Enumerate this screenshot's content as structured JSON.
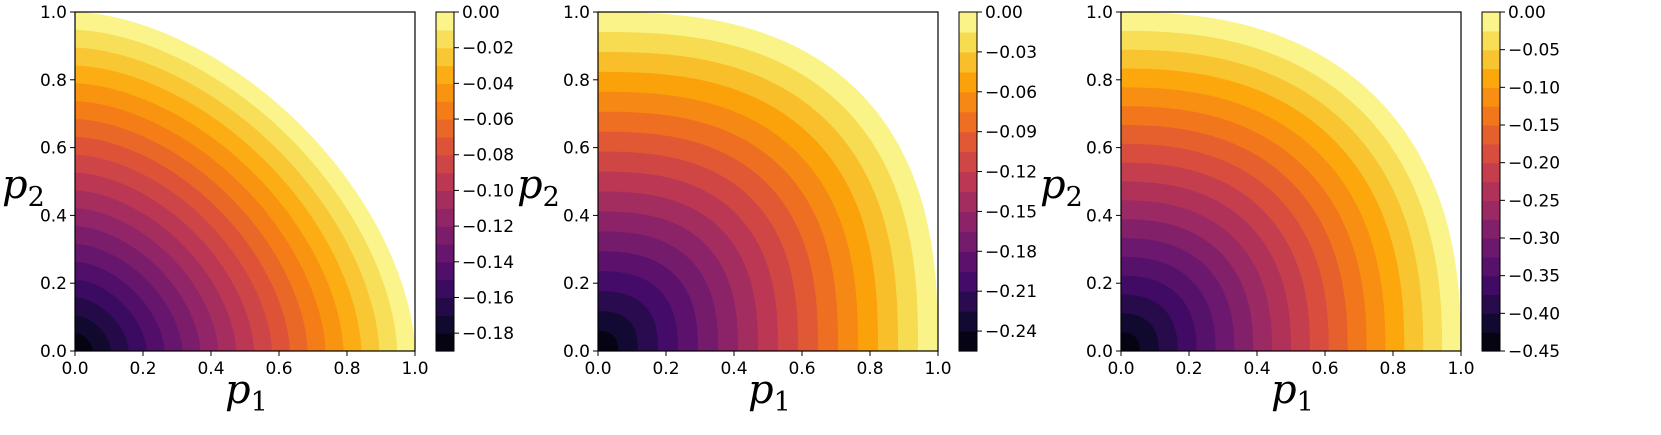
{
  "chart_data": [
    {
      "type": "heatmap",
      "subtype": "filled-contour",
      "colormap": "inferno",
      "xlabel": "p",
      "xlabel_sub": "1",
      "ylabel": "p",
      "ylabel_sub": "2",
      "xlim": [
        0.0,
        1.0
      ],
      "ylim": [
        0.0,
        1.0
      ],
      "xticks": [
        "0.0",
        "0.2",
        "0.4",
        "0.6",
        "0.8",
        "1.0"
      ],
      "yticks": [
        "0.0",
        "0.2",
        "0.4",
        "0.6",
        "0.8",
        "1.0"
      ],
      "min_value": -0.19,
      "max_value": 0.0,
      "contour_norm": 1.7,
      "num_levels": 19,
      "colorbar": {
        "min": -0.19,
        "max": 0.0,
        "tick_values": [
          0.0,
          -0.02,
          -0.04,
          -0.06,
          -0.08,
          -0.1,
          -0.12,
          -0.14,
          -0.16,
          -0.18
        ],
        "tick_labels": [
          "0.00",
          "−0.02",
          "−0.04",
          "−0.06",
          "−0.08",
          "−0.10",
          "−0.12",
          "−0.14",
          "−0.16",
          "−0.18"
        ]
      },
      "grid": false
    },
    {
      "type": "heatmap",
      "subtype": "filled-contour",
      "colormap": "inferno",
      "xlabel": "p",
      "xlabel_sub": "1",
      "ylabel": "p",
      "ylabel_sub": "2",
      "xlim": [
        0.0,
        1.0
      ],
      "ylim": [
        0.0,
        1.0
      ],
      "xticks": [
        "0.0",
        "0.2",
        "0.4",
        "0.6",
        "0.8",
        "1.0"
      ],
      "yticks": [
        "0.0",
        "0.2",
        "0.4",
        "0.6",
        "0.8",
        "1.0"
      ],
      "min_value": -0.255,
      "max_value": 0.0,
      "contour_norm": 2.6,
      "num_levels": 17,
      "colorbar": {
        "min": -0.255,
        "max": 0.0,
        "tick_values": [
          0.0,
          -0.03,
          -0.06,
          -0.09,
          -0.12,
          -0.15,
          -0.18,
          -0.21,
          -0.24
        ],
        "tick_labels": [
          "0.00",
          "−0.03",
          "−0.06",
          "−0.09",
          "−0.12",
          "−0.15",
          "−0.18",
          "−0.21",
          "−0.24"
        ]
      },
      "grid": false
    },
    {
      "type": "heatmap",
      "subtype": "filled-contour",
      "colormap": "inferno",
      "xlabel": "p",
      "xlabel_sub": "1",
      "ylabel": "p",
      "ylabel_sub": "2",
      "xlim": [
        0.0,
        1.0
      ],
      "ylim": [
        0.0,
        1.0
      ],
      "xticks": [
        "0.0",
        "0.2",
        "0.4",
        "0.6",
        "0.8",
        "1.0"
      ],
      "yticks": [
        "0.0",
        "0.2",
        "0.4",
        "0.6",
        "0.8",
        "1.0"
      ],
      "min_value": -0.45,
      "max_value": 0.0,
      "contour_norm": 2.4,
      "num_levels": 18,
      "colorbar": {
        "min": -0.45,
        "max": 0.0,
        "tick_values": [
          0.0,
          -0.05,
          -0.1,
          -0.15,
          -0.2,
          -0.25,
          -0.3,
          -0.35,
          -0.4,
          -0.45
        ],
        "tick_labels": [
          "0.00",
          "−0.05",
          "−0.10",
          "−0.15",
          "−0.20",
          "−0.25",
          "−0.30",
          "−0.35",
          "−0.40",
          "−0.45"
        ]
      },
      "grid": false
    }
  ]
}
